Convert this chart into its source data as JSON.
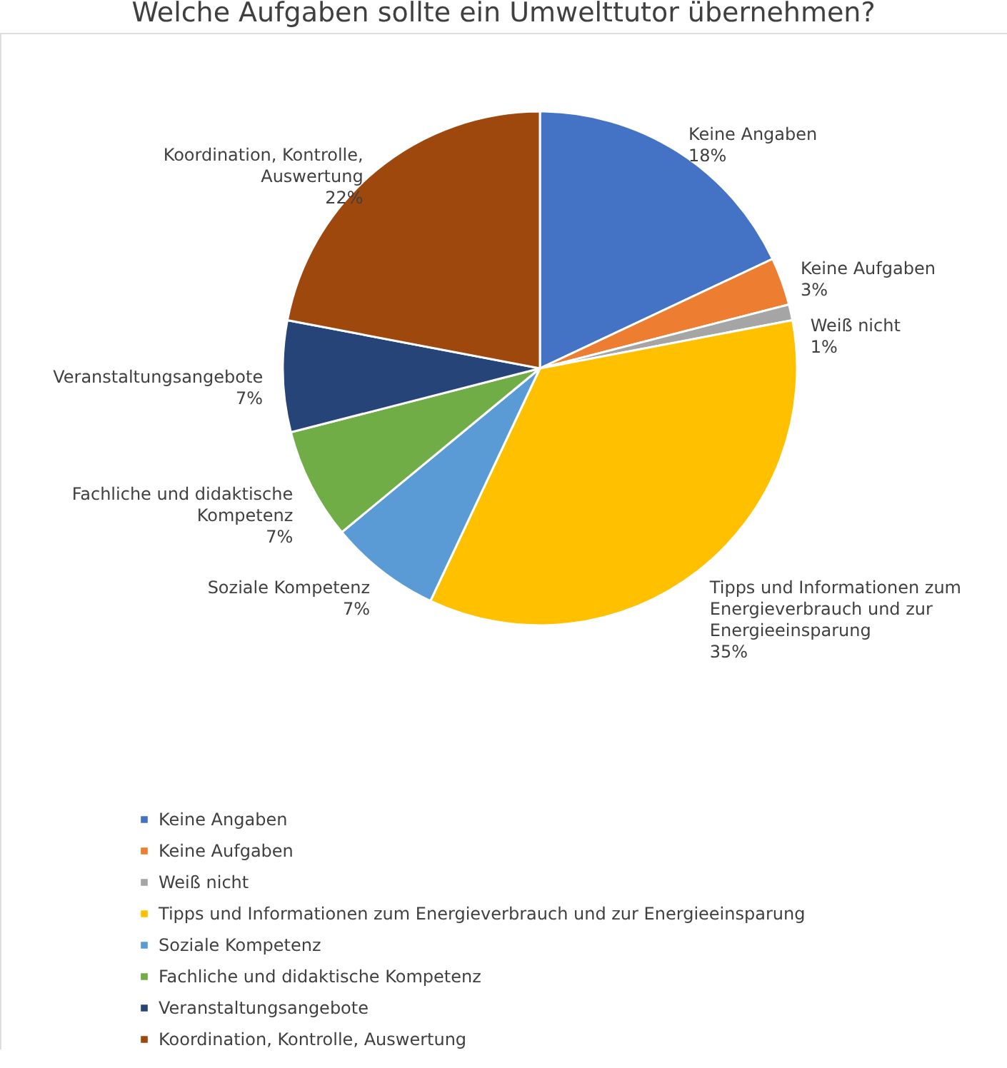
{
  "chart_data": {
    "type": "pie",
    "title": "Welche Aufgaben sollte ein Umwelttutor übernehmen?",
    "categories": [
      "Keine Angaben",
      "Keine Aufgaben",
      "Weiß nicht",
      "Tipps und Informationen zum Energieverbrauch und zur Energieeinsparung",
      "Soziale Kompetenz",
      "Fachliche und didaktische Kompetenz",
      "Veranstaltungsangebote",
      "Koordination, Kontrolle, Auswertung"
    ],
    "values": [
      18,
      3,
      1,
      35,
      7,
      7,
      7,
      22
    ],
    "colors": [
      "#4472c4",
      "#ed7d31",
      "#a5a5a5",
      "#ffc000",
      "#5b9bd5",
      "#70ad47",
      "#264478",
      "#9e480e"
    ],
    "value_labels": [
      "18%",
      "3%",
      "1%",
      "35%",
      "7%",
      "7%",
      "7%",
      "22%"
    ],
    "legend": "bottom"
  }
}
